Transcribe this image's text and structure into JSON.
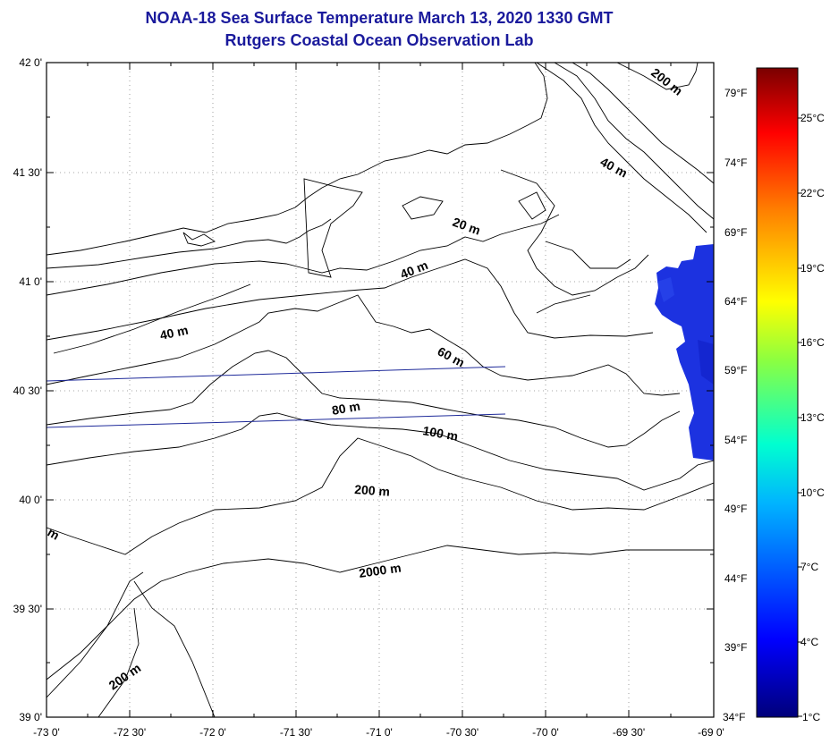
{
  "title": "NOAA-18 Sea Surface Temperature March 13, 2020 1330 GMT",
  "subtitle": "Rutgers Coastal Ocean Observation Lab",
  "lat_labels": [
    "42 0'",
    "41 30'",
    "41 0'",
    "40 30'",
    "40 0'",
    "39 30'",
    "39 0'"
  ],
  "lon_labels": [
    "-73 0'",
    "-72 30'",
    "-72 0'",
    "-71 30'",
    "-71 0'",
    "-70 30'",
    "-70 0'",
    "-69 30'",
    "-69 0'"
  ],
  "fahrenheit_labels": [
    "79°F",
    "74°F",
    "69°F",
    "64°F",
    "59°F",
    "54°F",
    "49°F",
    "44°F",
    "39°F",
    "34°F"
  ],
  "celsius_labels": [
    "25°C",
    "22°C",
    "19°C",
    "16°C",
    "13°C",
    "10°C",
    "7°C",
    "4°C",
    "1°C"
  ],
  "contour_labels": [
    "200 m",
    "40 m",
    "20 m",
    "40 m",
    "40 m",
    "60 m",
    "80 m",
    "100 m",
    "200 m",
    "2000 m",
    "200 m",
    "m"
  ],
  "colors": {
    "title": "#1a1a9c",
    "sst_data": "#1c32e0",
    "track_line": "#1e2a9a",
    "contour": "#000000"
  }
}
